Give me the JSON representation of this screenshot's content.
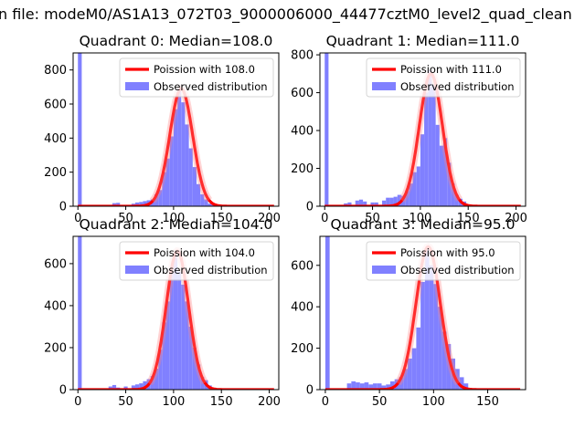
{
  "figure": {
    "suptitle": "n file: modeM0/AS1A13_072T03_9000006000_44477cztM0_level2_quad_clean"
  },
  "chart_data": [
    {
      "type": "bar",
      "title": "Quadrant 0: Median=108.0",
      "xlim": [
        -5,
        210
      ],
      "ylim": [
        0,
        900
      ],
      "xticks": [
        0,
        50,
        100,
        150,
        200
      ],
      "yticks": [
        0,
        200,
        400,
        600,
        800
      ],
      "legend_placement": "top-right",
      "series": [
        {
          "name": "Poission with 108.0",
          "kind": "line",
          "color": "#ff0000",
          "mu": 108.0,
          "peak": 690
        },
        {
          "name": "Observed distribution",
          "kind": "hist",
          "color": "#8080ff",
          "hist_bins": [
            [
              0,
              4,
              900
            ],
            [
              36,
              40,
              18
            ],
            [
              40,
              44,
              20
            ],
            [
              56,
              60,
              15
            ],
            [
              60,
              64,
              22
            ],
            [
              64,
              68,
              25
            ],
            [
              68,
              72,
              30
            ],
            [
              72,
              76,
              35
            ],
            [
              76,
              80,
              40
            ],
            [
              80,
              84,
              70
            ],
            [
              84,
              88,
              95
            ],
            [
              88,
              92,
              200
            ],
            [
              92,
              96,
              280
            ],
            [
              96,
              100,
              410
            ],
            [
              100,
              104,
              570
            ],
            [
              104,
              108,
              690
            ],
            [
              108,
              112,
              610
            ],
            [
              112,
              116,
              480
            ],
            [
              116,
              120,
              340
            ],
            [
              120,
              124,
              230
            ],
            [
              124,
              128,
              130
            ],
            [
              128,
              132,
              70
            ],
            [
              132,
              136,
              40
            ],
            [
              136,
              140,
              15
            ],
            [
              140,
              144,
              8
            ]
          ]
        }
      ]
    },
    {
      "type": "bar",
      "title": "Quadrant 1: Median=111.0",
      "xlim": [
        -5,
        210
      ],
      "ylim": [
        0,
        810
      ],
      "xticks": [
        0,
        50,
        100,
        150,
        200
      ],
      "yticks": [
        0,
        200,
        400,
        600,
        800
      ],
      "legend_placement": "top-right",
      "series": [
        {
          "name": "Poission with 111.0",
          "kind": "line",
          "color": "#ff0000",
          "mu": 111.0,
          "peak": 700
        },
        {
          "name": "Observed distribution",
          "kind": "hist",
          "color": "#8080ff",
          "hist_bins": [
            [
              0,
              4,
              810
            ],
            [
              20,
              24,
              15
            ],
            [
              24,
              28,
              20
            ],
            [
              32,
              36,
              30
            ],
            [
              36,
              40,
              35
            ],
            [
              40,
              44,
              25
            ],
            [
              48,
              52,
              20
            ],
            [
              52,
              56,
              20
            ],
            [
              60,
              64,
              30
            ],
            [
              64,
              68,
              45
            ],
            [
              68,
              72,
              45
            ],
            [
              72,
              76,
              50
            ],
            [
              76,
              80,
              60
            ],
            [
              80,
              84,
              55
            ],
            [
              84,
              88,
              80
            ],
            [
              88,
              92,
              120
            ],
            [
              92,
              96,
              180
            ],
            [
              96,
              100,
              210
            ],
            [
              100,
              104,
              380
            ],
            [
              104,
              108,
              600
            ],
            [
              108,
              112,
              720
            ],
            [
              112,
              116,
              640
            ],
            [
              116,
              120,
              430
            ],
            [
              120,
              124,
              320
            ],
            [
              124,
              128,
              360
            ],
            [
              128,
              132,
              230
            ],
            [
              132,
              136,
              120
            ],
            [
              136,
              140,
              60
            ],
            [
              140,
              144,
              40
            ],
            [
              144,
              148,
              25
            ]
          ]
        }
      ]
    },
    {
      "type": "bar",
      "title": "Quadrant 2: Median=104.0",
      "xlim": [
        -5,
        210
      ],
      "ylim": [
        0,
        730
      ],
      "xticks": [
        0,
        50,
        100,
        150,
        200
      ],
      "yticks": [
        0,
        200,
        400,
        600
      ],
      "legend_placement": "top-right",
      "series": [
        {
          "name": "Poission with 104.0",
          "kind": "line",
          "color": "#ff0000",
          "mu": 104.0,
          "peak": 660
        },
        {
          "name": "Observed distribution",
          "kind": "hist",
          "color": "#8080ff",
          "hist_bins": [
            [
              0,
              4,
              730
            ],
            [
              32,
              36,
              15
            ],
            [
              36,
              40,
              22
            ],
            [
              40,
              44,
              10
            ],
            [
              48,
              52,
              15
            ],
            [
              56,
              60,
              20
            ],
            [
              60,
              64,
              25
            ],
            [
              64,
              68,
              30
            ],
            [
              68,
              72,
              40
            ],
            [
              72,
              76,
              50
            ],
            [
              76,
              80,
              65
            ],
            [
              80,
              84,
              100
            ],
            [
              84,
              88,
              190
            ],
            [
              88,
              92,
              320
            ],
            [
              92,
              96,
              420
            ],
            [
              96,
              100,
              560
            ],
            [
              100,
              104,
              640
            ],
            [
              104,
              108,
              560
            ],
            [
              108,
              112,
              500
            ],
            [
              112,
              116,
              420
            ],
            [
              116,
              120,
              300
            ],
            [
              120,
              124,
              200
            ],
            [
              124,
              128,
              120
            ],
            [
              128,
              132,
              60
            ],
            [
              132,
              136,
              45
            ],
            [
              136,
              140,
              20
            ]
          ]
        }
      ]
    },
    {
      "type": "bar",
      "title": "Quadrant 3: Median=95.0",
      "xlim": [
        -5,
        185
      ],
      "ylim": [
        0,
        740
      ],
      "xticks": [
        0,
        50,
        100,
        150
      ],
      "yticks": [
        0,
        200,
        400,
        600
      ],
      "legend_placement": "top-right",
      "series": [
        {
          "name": "Poission with 95.0",
          "kind": "line",
          "color": "#ff0000",
          "mu": 95.0,
          "peak": 690
        },
        {
          "name": "Observed distribution",
          "kind": "hist",
          "color": "#8080ff",
          "hist_bins": [
            [
              0,
              4,
              740
            ],
            [
              20,
              24,
              30
            ],
            [
              24,
              28,
              40
            ],
            [
              28,
              32,
              35
            ],
            [
              32,
              36,
              30
            ],
            [
              36,
              40,
              35
            ],
            [
              40,
              44,
              25
            ],
            [
              44,
              48,
              30
            ],
            [
              48,
              52,
              30
            ],
            [
              52,
              56,
              20
            ],
            [
              56,
              60,
              25
            ],
            [
              60,
              64,
              40
            ],
            [
              64,
              68,
              50
            ],
            [
              68,
              72,
              60
            ],
            [
              72,
              76,
              100
            ],
            [
              76,
              80,
              150
            ],
            [
              80,
              84,
              200
            ],
            [
              84,
              88,
              300
            ],
            [
              88,
              92,
              520
            ],
            [
              92,
              96,
              680
            ],
            [
              96,
              100,
              600
            ],
            [
              100,
              104,
              510
            ],
            [
              104,
              108,
              400
            ],
            [
              108,
              112,
              280
            ],
            [
              112,
              116,
              220
            ],
            [
              116,
              120,
              150
            ],
            [
              120,
              124,
              100
            ],
            [
              124,
              128,
              60
            ],
            [
              128,
              132,
              30
            ]
          ]
        }
      ]
    }
  ]
}
